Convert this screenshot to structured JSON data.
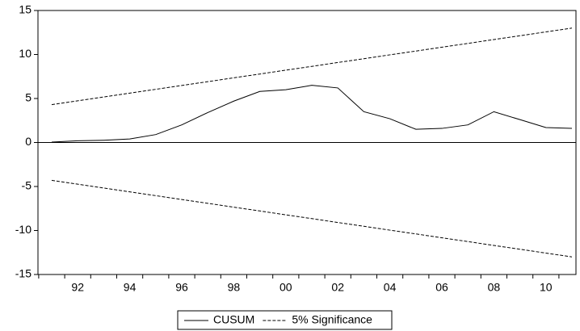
{
  "chart_data": {
    "type": "line",
    "categories": [
      null,
      "92",
      null,
      "94",
      null,
      "96",
      null,
      "98",
      null,
      "00",
      null,
      "02",
      null,
      "04",
      null,
      "06",
      null,
      "08",
      null,
      "10",
      null
    ],
    "series": [
      {
        "name": "CUSUM",
        "color": "#000000",
        "dash": "solid",
        "values": [
          0.05,
          0.2,
          0.25,
          0.4,
          0.9,
          2.0,
          3.4,
          4.7,
          5.8,
          6.0,
          6.5,
          6.2,
          3.5,
          2.7,
          1.5,
          1.6,
          2.0,
          3.5,
          2.6,
          1.7,
          1.6
        ]
      },
      {
        "name": "5% Significance",
        "color": "#000000",
        "dash": "dashed",
        "values": [
          4.3,
          4.74,
          5.17,
          5.61,
          6.04,
          6.48,
          6.91,
          7.35,
          7.78,
          8.22,
          8.65,
          9.09,
          9.52,
          9.96,
          10.39,
          10.83,
          11.26,
          11.7,
          12.13,
          12.57,
          13.0
        ],
        "lower": [
          -4.3,
          -4.74,
          -5.17,
          -5.61,
          -6.04,
          -6.48,
          -6.91,
          -7.35,
          -7.78,
          -8.22,
          -8.65,
          -9.09,
          -9.52,
          -9.96,
          -10.39,
          -10.83,
          -11.26,
          -11.7,
          -12.13,
          -12.57,
          -13.0
        ]
      }
    ],
    "ylim": [
      -15,
      15
    ],
    "yticks": [
      -15,
      -10,
      -5,
      0,
      5,
      10,
      15
    ],
    "legend": "bottom"
  }
}
